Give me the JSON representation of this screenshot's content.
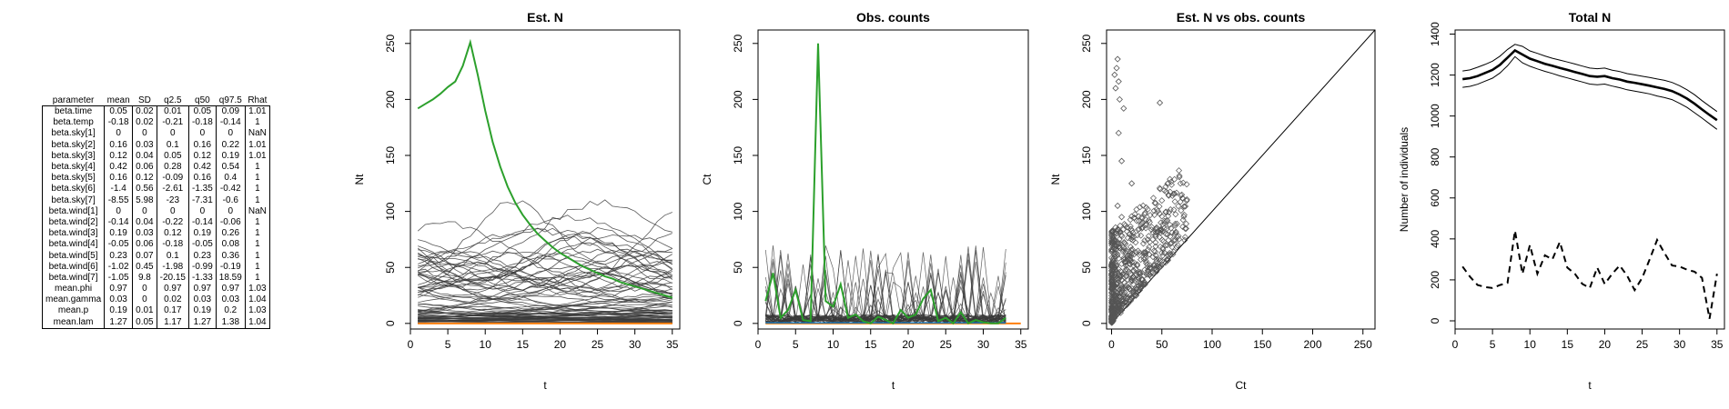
{
  "summary_table": {
    "columns": [
      "parameter",
      "mean",
      "SD",
      "q2.5",
      "q50",
      "q97.5",
      "Rhat"
    ],
    "rows": [
      [
        "beta.time",
        "0.05",
        "0.02",
        "0.01",
        "0.05",
        "0.09",
        "1.01"
      ],
      [
        "beta.temp",
        "-0.18",
        "0.02",
        "-0.21",
        "-0.18",
        "-0.14",
        "1"
      ],
      [
        "beta.sky[1]",
        "0",
        "0",
        "0",
        "0",
        "0",
        "NaN"
      ],
      [
        "beta.sky[2]",
        "0.16",
        "0.03",
        "0.1",
        "0.16",
        "0.22",
        "1.01"
      ],
      [
        "beta.sky[3]",
        "0.12",
        "0.04",
        "0.05",
        "0.12",
        "0.19",
        "1.01"
      ],
      [
        "beta.sky[4]",
        "0.42",
        "0.06",
        "0.28",
        "0.42",
        "0.54",
        "1"
      ],
      [
        "beta.sky[5]",
        "0.16",
        "0.12",
        "-0.09",
        "0.16",
        "0.4",
        "1"
      ],
      [
        "beta.sky[6]",
        "-1.4",
        "0.56",
        "-2.61",
        "-1.35",
        "-0.42",
        "1"
      ],
      [
        "beta.sky[7]",
        "-8.55",
        "5.98",
        "-23",
        "-7.31",
        "-0.6",
        "1"
      ],
      [
        "beta.wind[1]",
        "0",
        "0",
        "0",
        "0",
        "0",
        "NaN"
      ],
      [
        "beta.wind[2]",
        "-0.14",
        "0.04",
        "-0.22",
        "-0.14",
        "-0.06",
        "1"
      ],
      [
        "beta.wind[3]",
        "0.19",
        "0.03",
        "0.12",
        "0.19",
        "0.26",
        "1"
      ],
      [
        "beta.wind[4]",
        "-0.05",
        "0.06",
        "-0.18",
        "-0.05",
        "0.08",
        "1"
      ],
      [
        "beta.wind[5]",
        "0.23",
        "0.07",
        "0.1",
        "0.23",
        "0.36",
        "1"
      ],
      [
        "beta.wind[6]",
        "-1.02",
        "0.45",
        "-1.98",
        "-0.99",
        "-0.19",
        "1"
      ],
      [
        "beta.wind[7]",
        "-1.05",
        "9.8",
        "-20.15",
        "-1.33",
        "18.59",
        "1"
      ],
      [
        "mean.phi",
        "0.97",
        "0",
        "0.97",
        "0.97",
        "0.97",
        "1.03"
      ],
      [
        "mean.gamma",
        "0.03",
        "0",
        "0.02",
        "0.03",
        "0.03",
        "1.04"
      ],
      [
        "mean.p",
        "0.19",
        "0.01",
        "0.17",
        "0.19",
        "0.2",
        "1.03"
      ],
      [
        "mean.lam",
        "1.27",
        "0.05",
        "1.17",
        "1.27",
        "1.38",
        "1.04"
      ]
    ]
  },
  "chart_data": [
    {
      "type": "line",
      "title": "Est. N",
      "xlabel": "t",
      "ylabel": "Nt",
      "xlim": [
        0,
        36
      ],
      "ylim": [
        -5,
        262
      ],
      "xticks": [
        "0",
        "5",
        "10",
        "15",
        "20",
        "25",
        "30",
        "35"
      ],
      "yticks": [
        "0",
        "50",
        "100",
        "150",
        "200",
        "250"
      ],
      "colors": {
        "highlight": "#2ca02c",
        "zero": "#ff7f0e",
        "background": "#3a3a3a"
      },
      "series": [
        {
          "values": [
            192,
            196,
            200,
            205,
            211,
            216,
            230,
            251,
            222,
            190,
            162,
            140,
            122,
            108,
            97,
            88,
            80,
            74,
            68,
            63,
            59,
            55,
            51,
            48,
            45,
            42,
            40,
            37,
            35,
            33,
            31,
            29,
            27,
            25,
            23
          ]
        }
      ],
      "background_band": {
        "min": 0,
        "max": 80,
        "count": 90
      }
    },
    {
      "type": "line",
      "title": "Obs. counts",
      "xlabel": "t",
      "ylabel": "Ct",
      "xlim": [
        0,
        36
      ],
      "ylim": [
        -5,
        262
      ],
      "xticks": [
        "0",
        "5",
        "10",
        "15",
        "20",
        "25",
        "30",
        "35"
      ],
      "yticks": [
        "0",
        "50",
        "100",
        "150",
        "200",
        "250"
      ],
      "colors": {
        "highlight": "#2ca02c",
        "zero": "#ff7f0e",
        "blue": "#1f77b4",
        "background": "#3a3a3a"
      },
      "series": [
        {
          "values": [
            20,
            45,
            5,
            12,
            30,
            3,
            2,
            250,
            20,
            15,
            35,
            5,
            8,
            2,
            0,
            6,
            3,
            0,
            12,
            5,
            8,
            22,
            30,
            2,
            5,
            0,
            10,
            0,
            3,
            1,
            0,
            0,
            5
          ]
        }
      ],
      "background_band": {
        "min": 0,
        "max": 70,
        "count": 40
      }
    },
    {
      "type": "scatter",
      "title": "Est. N vs obs. counts",
      "xlabel": "Ct",
      "ylabel": "Nt",
      "xlim": [
        -5,
        262
      ],
      "ylim": [
        -5,
        262
      ],
      "xticks": [
        "0",
        "50",
        "100",
        "150",
        "200",
        "250"
      ],
      "yticks": [
        "0",
        "50",
        "100",
        "150",
        "200",
        "250"
      ],
      "identity_line": true,
      "outliers": [
        [
          6,
          236
        ],
        [
          5,
          228
        ],
        [
          3,
          222
        ],
        [
          7,
          216
        ],
        [
          4,
          210
        ],
        [
          8,
          200
        ],
        [
          12,
          192
        ],
        [
          48,
          197
        ],
        [
          7,
          170
        ],
        [
          10,
          145
        ],
        [
          20,
          125
        ],
        [
          6,
          105
        ],
        [
          10,
          95
        ]
      ]
    },
    {
      "type": "line",
      "title": "Total N",
      "xlabel": "t",
      "ylabel": "Number of individuals",
      "xlim": [
        0,
        36
      ],
      "ylim": [
        -40,
        1420
      ],
      "xticks": [
        "0",
        "5",
        "10",
        "15",
        "20",
        "25",
        "30",
        "35"
      ],
      "yticks": [
        "0",
        "200",
        "400",
        "600",
        "800",
        "1000",
        "1200",
        "1400"
      ],
      "series": [
        {
          "name": "",
          "values": [
            1180,
            1185,
            1195,
            1210,
            1225,
            1250,
            1285,
            1320,
            1300,
            1280,
            1268,
            1255,
            1245,
            1235,
            1225,
            1215,
            1205,
            1195,
            1192,
            1195,
            1185,
            1178,
            1168,
            1162,
            1155,
            1148,
            1140,
            1132,
            1122,
            1105,
            1085,
            1060,
            1032,
            1005,
            980
          ]
        },
        {
          "name": "",
          "values": [
            1140,
            1145,
            1155,
            1170,
            1185,
            1210,
            1245,
            1290,
            1260,
            1243,
            1230,
            1218,
            1208,
            1196,
            1186,
            1176,
            1166,
            1156,
            1153,
            1156,
            1146,
            1138,
            1128,
            1122,
            1115,
            1108,
            1098,
            1090,
            1080,
            1062,
            1042,
            1016,
            990,
            962,
            935
          ]
        },
        {
          "name": "",
          "values": [
            1220,
            1225,
            1238,
            1252,
            1268,
            1292,
            1325,
            1350,
            1340,
            1318,
            1306,
            1293,
            1282,
            1273,
            1264,
            1254,
            1244,
            1234,
            1231,
            1234,
            1224,
            1217,
            1207,
            1201,
            1194,
            1188,
            1181,
            1174,
            1164,
            1148,
            1128,
            1104,
            1075,
            1048,
            1022
          ]
        },
        {
          "name": "",
          "values": [
            265,
            215,
            175,
            165,
            160,
            175,
            185,
            440,
            230,
            370,
            230,
            320,
            300,
            385,
            260,
            230,
            180,
            160,
            260,
            180,
            230,
            270,
            220,
            150,
            210,
            300,
            395,
            330,
            270,
            265,
            250,
            240,
            210,
            10,
            230
          ]
        }
      ]
    }
  ]
}
